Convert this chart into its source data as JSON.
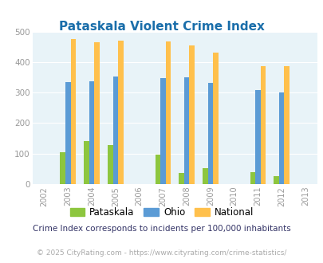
{
  "title": "Pataskala Violent Crime Index",
  "all_years": [
    2002,
    2003,
    2004,
    2005,
    2006,
    2007,
    2008,
    2009,
    2010,
    2011,
    2012,
    2013
  ],
  "data_years": [
    2003,
    2004,
    2005,
    2007,
    2008,
    2009,
    2011,
    2012
  ],
  "pataskala": [
    105,
    140,
    128,
    97,
    37,
    52,
    38,
    25
  ],
  "ohio": [
    335,
    338,
    352,
    347,
    350,
    333,
    309,
    300
  ],
  "national": [
    476,
    465,
    470,
    467,
    455,
    432,
    387,
    386
  ],
  "color_pataskala": "#8dc63f",
  "color_ohio": "#5b9bd5",
  "color_national": "#ffc04c",
  "bg_color": "#e8f3f8",
  "title_color": "#1a6eaa",
  "subtitle": "Crime Index corresponds to incidents per 100,000 inhabitants",
  "footer": "© 2025 CityRating.com - https://www.cityrating.com/crime-statistics/",
  "ylim": [
    0,
    500
  ],
  "yticks": [
    0,
    100,
    200,
    300,
    400,
    500
  ],
  "bar_width": 0.22
}
